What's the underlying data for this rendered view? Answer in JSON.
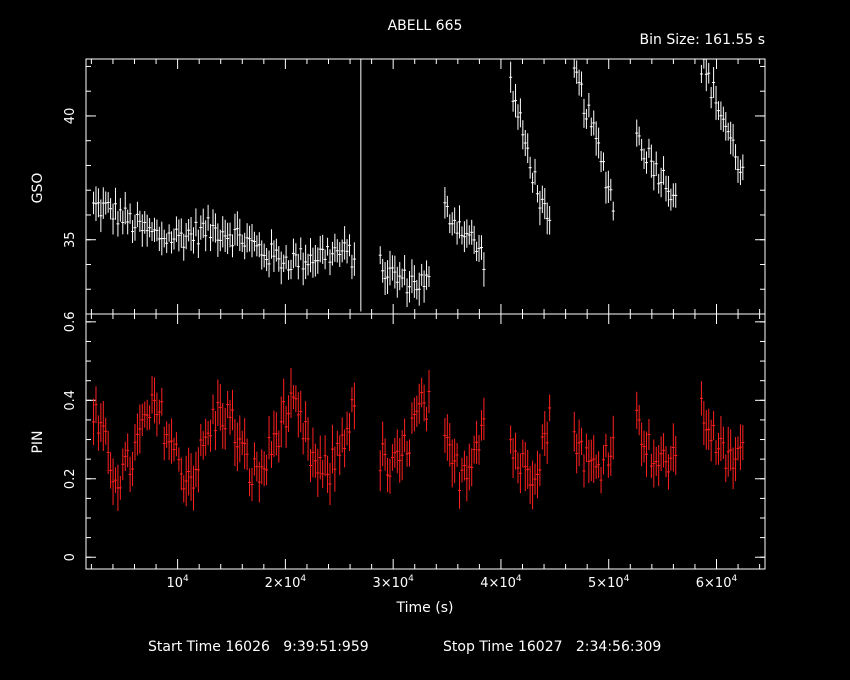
{
  "chart_data": {
    "type": "scatter",
    "title": "ABELL 665",
    "subtitle": "Bin Size:  161.55 s",
    "xlabel": "Time (s)",
    "footer": {
      "start": "Start Time 16026   9:39:51:959",
      "stop": "Stop Time 16027   2:34:56:309"
    },
    "xlim": [
      1500,
      64500
    ],
    "x_ticks": [
      {
        "value": 10000,
        "label": "10^4"
      },
      {
        "value": 20000,
        "label": "2×10^4"
      },
      {
        "value": 30000,
        "label": "3×10^4"
      },
      {
        "value": 40000,
        "label": "4×10^4"
      },
      {
        "value": 50000,
        "label": "5×10^4"
      },
      {
        "value": 60000,
        "label": "6×10^4"
      }
    ],
    "panels": [
      {
        "ylabel": "GSO",
        "ylim": [
          32.0,
          42.3
        ],
        "y_ticks": [
          {
            "value": 35,
            "label": "35"
          },
          {
            "value": 40,
            "label": "40"
          }
        ],
        "color": "#ffffff",
        "segments": [
          {
            "t0": 2200,
            "t1": 26600,
            "y0": 36.0,
            "y1": 34.0
          },
          {
            "t0": 28800,
            "t1": 33500,
            "y0": 34.0,
            "y1": 33.4
          },
          {
            "t0": 34800,
            "t1": 38500,
            "y0": 36.0,
            "y1": 34.0
          },
          {
            "t0": 40900,
            "t1": 44600,
            "y0": 41.5,
            "y1": 35.3
          },
          {
            "t0": 46800,
            "t1": 50500,
            "y0": 41.5,
            "y1": 36.3
          },
          {
            "t0": 52600,
            "t1": 56400,
            "y0": 39.5,
            "y1": 36.8
          },
          {
            "t0": 58600,
            "t1": 62600,
            "y0": 41.8,
            "y1": 37.5
          }
        ],
        "spike": {
          "t": 27000,
          "y_low": 32.1,
          "y_high": 42.3
        }
      },
      {
        "ylabel": "PIN",
        "ylim": [
          -0.03,
          0.62
        ],
        "y_ticks": [
          {
            "value": 0,
            "label": "0"
          },
          {
            "value": 0.2,
            "label": "0.2"
          },
          {
            "value": 0.4,
            "label": "0.4"
          },
          {
            "value": 0.6,
            "label": "0.6"
          }
        ],
        "color": "#ff2020",
        "segments": [
          {
            "t0": 2200,
            "t1": 26600,
            "mean": 0.29,
            "amp": 0.1
          },
          {
            "t0": 28800,
            "t1": 33500,
            "mean": 0.3,
            "amp": 0.1
          },
          {
            "t0": 34800,
            "t1": 38500,
            "mean": 0.3,
            "amp": 0.1
          },
          {
            "t0": 40900,
            "t1": 44600,
            "mean": 0.3,
            "amp": 0.1
          },
          {
            "t0": 46800,
            "t1": 50500,
            "mean": 0.3,
            "amp": 0.09
          },
          {
            "t0": 52600,
            "t1": 56400,
            "mean": 0.3,
            "amp": 0.08
          },
          {
            "t0": 58600,
            "t1": 62600,
            "mean": 0.31,
            "amp": 0.08
          }
        ]
      }
    ]
  }
}
